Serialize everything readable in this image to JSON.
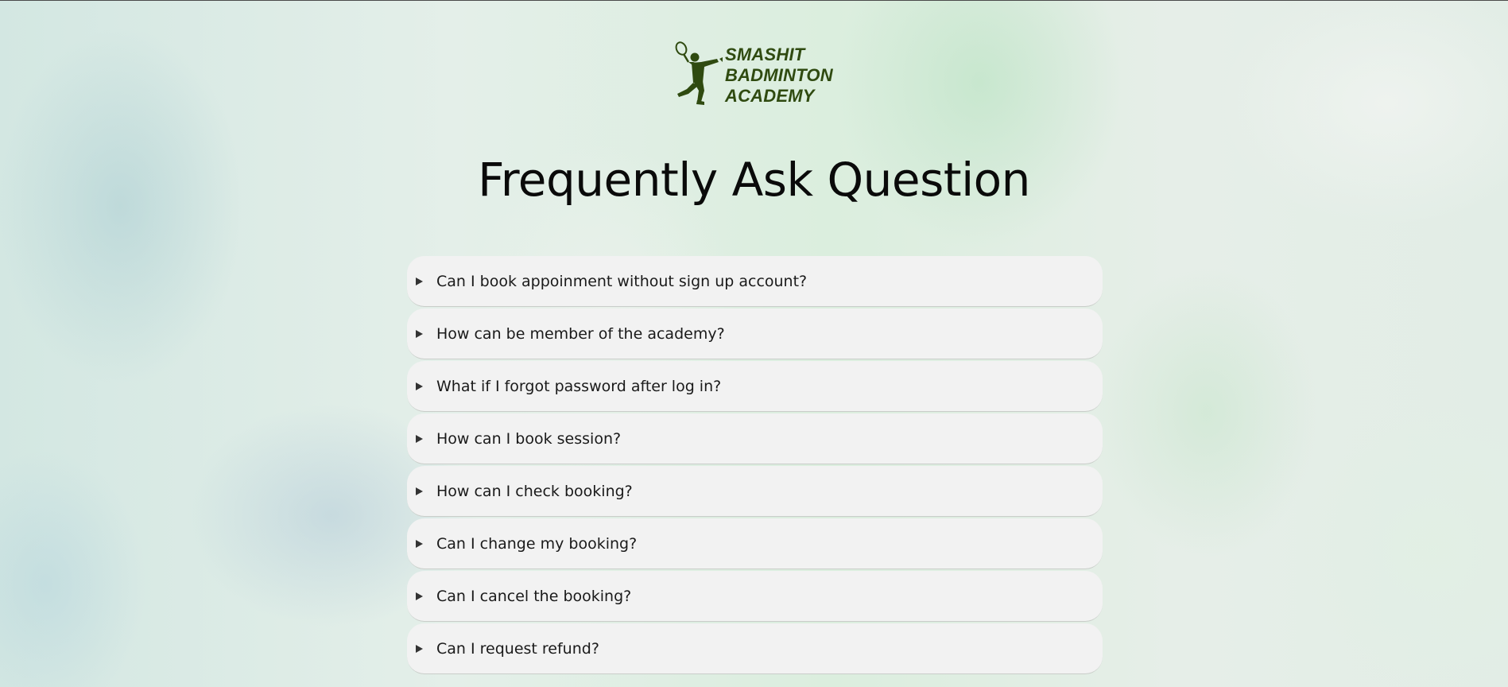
{
  "brand": {
    "logo_lines": [
      "SMASHIT",
      "BADMINTON",
      "ACADEMY"
    ],
    "logo_icon": "badminton-player-icon",
    "color": "#2f4a10"
  },
  "page": {
    "title": "Frequently Ask Question"
  },
  "faq": {
    "expander_icon": "triangle-right-icon",
    "items": [
      {
        "question": "Can I book appoinment without sign up account?"
      },
      {
        "question": "How can be member of the academy?"
      },
      {
        "question": "What if I forgot password after log in?"
      },
      {
        "question": "How can I book session?"
      },
      {
        "question": "How can I check booking?"
      },
      {
        "question": "Can I change my booking?"
      },
      {
        "question": "Can I cancel the booking?"
      },
      {
        "question": "Can I request refund?"
      }
    ]
  }
}
